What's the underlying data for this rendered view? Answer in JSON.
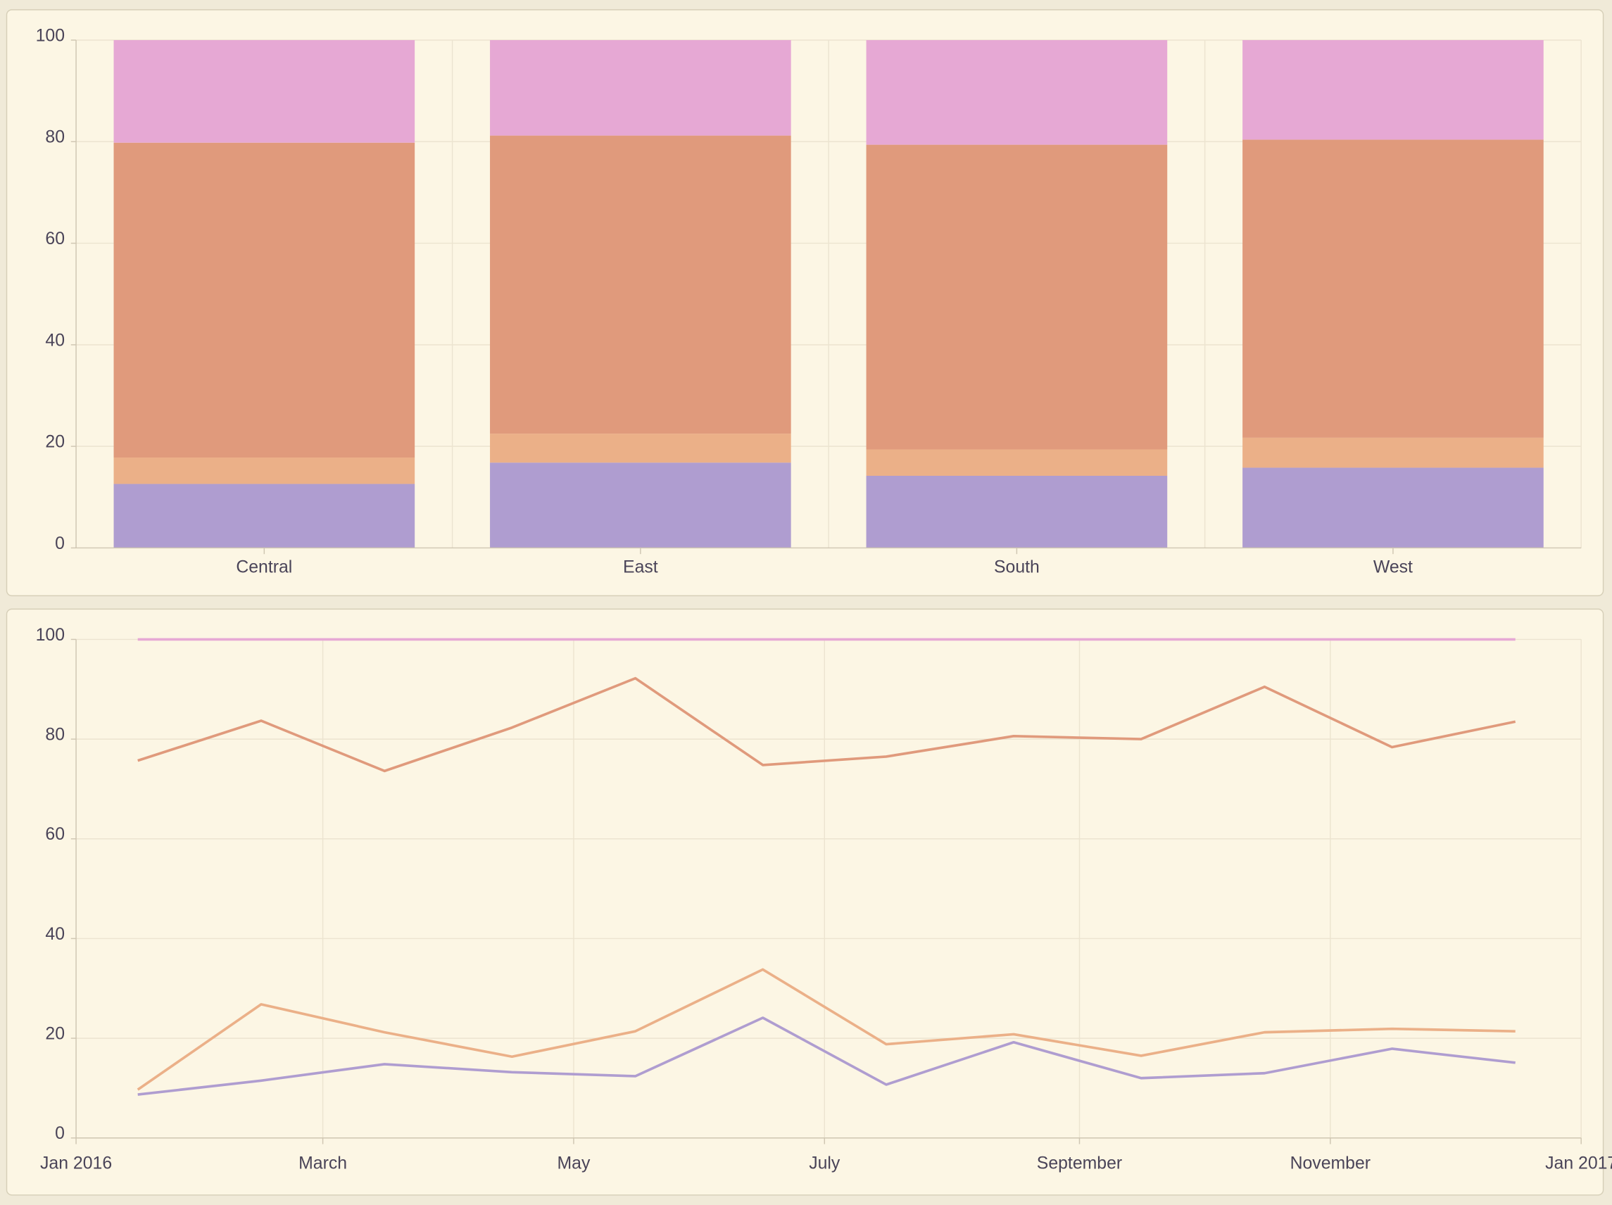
{
  "colors": {
    "background": "#f0ead8",
    "panel": "#fcf6e4",
    "panel_border": "#d6cfb8",
    "grid": "#ece4d0",
    "axis": "#cfc6b2",
    "series": [
      "#af9dd0",
      "#ebb088",
      "#e09a7c",
      "#e6a8d4"
    ]
  },
  "chart_data": [
    {
      "type": "bar",
      "stacked": true,
      "categories": [
        "Central",
        "East",
        "South",
        "West"
      ],
      "series": [
        {
          "values": [
            12.6,
            16.8,
            14.2,
            15.8
          ],
          "color": "#af9dd0"
        },
        {
          "values": [
            5.2,
            5.7,
            5.2,
            5.9
          ],
          "color": "#ebb088"
        },
        {
          "values": [
            62.0,
            58.7,
            60.0,
            58.7
          ],
          "color": "#e09a7c"
        },
        {
          "values": [
            20.2,
            18.8,
            20.6,
            19.6
          ],
          "color": "#e6a8d4"
        }
      ],
      "ylim": [
        0,
        100
      ],
      "yticks": [
        "0",
        "20",
        "40",
        "60",
        "80",
        "100"
      ],
      "grid": true,
      "legend": "none"
    },
    {
      "type": "line",
      "x": [
        "2016-01-16",
        "2016-02-15",
        "2016-03-16",
        "2016-04-16",
        "2016-05-16",
        "2016-06-16",
        "2016-07-16",
        "2016-08-16",
        "2016-09-16",
        "2016-10-16",
        "2016-11-16",
        "2016-12-16"
      ],
      "series": [
        {
          "values": [
            8.7,
            11.5,
            14.8,
            13.2,
            12.4,
            24.1,
            10.7,
            19.2,
            12.0,
            13.0,
            17.9,
            15.1
          ],
          "color": "#af9dd0"
        },
        {
          "values": [
            9.7,
            26.8,
            21.2,
            16.3,
            21.4,
            33.8,
            18.8,
            20.8,
            16.5,
            21.2,
            21.9,
            21.4
          ],
          "color": "#ebb088"
        },
        {
          "values": [
            75.7,
            83.7,
            73.6,
            82.3,
            92.2,
            74.8,
            76.5,
            80.6,
            80.0,
            90.5,
            78.4,
            83.5
          ],
          "color": "#e09a7c"
        },
        {
          "values": [
            100,
            100,
            100,
            100,
            100,
            100,
            100,
            100,
            100,
            100,
            100,
            100
          ],
          "color": "#e6a8d4"
        }
      ],
      "xlim": [
        "2016-01-01",
        "2017-01-01"
      ],
      "xticks": [
        {
          "date": "2016-01-01",
          "label": "Jan 2016"
        },
        {
          "date": "2016-03-01",
          "label": "March"
        },
        {
          "date": "2016-05-01",
          "label": "May"
        },
        {
          "date": "2016-07-01",
          "label": "July"
        },
        {
          "date": "2016-09-01",
          "label": "September"
        },
        {
          "date": "2016-11-01",
          "label": "November"
        },
        {
          "date": "2017-01-01",
          "label": "Jan 2017"
        }
      ],
      "ylim": [
        0,
        100
      ],
      "yticks": [
        "0",
        "20",
        "40",
        "60",
        "80",
        "100"
      ],
      "grid": true,
      "legend": "none"
    }
  ]
}
